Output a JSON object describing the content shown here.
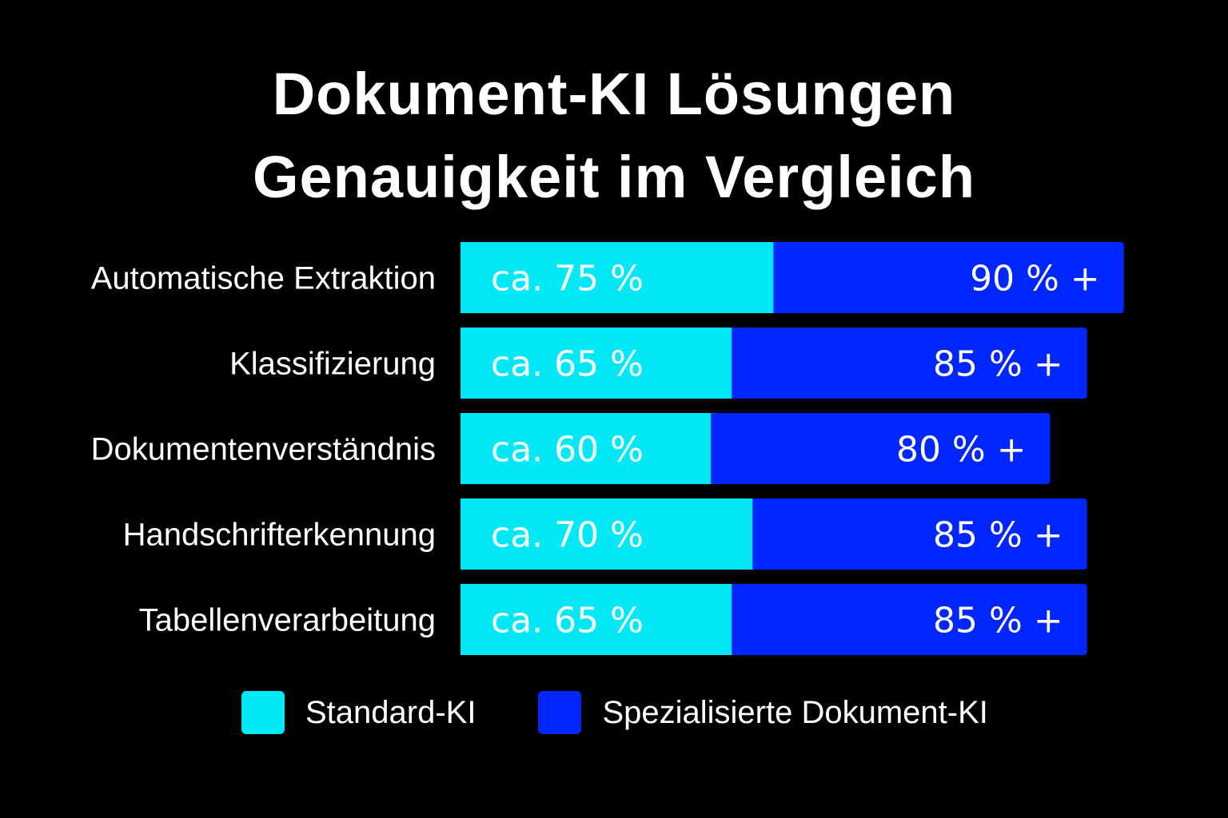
{
  "chart_data": {
    "type": "bar",
    "orientation": "horizontal",
    "stacked": true,
    "title": [
      "Dokument-KI Lösungen",
      "Genauigkeit im Vergleich"
    ],
    "categories": [
      "Automatische Extraktion",
      "Klassifizierung",
      "Dokumentenverständnis",
      "Handschrifterkennung",
      "Tabellenverarbeitung"
    ],
    "series": [
      {
        "name": "Standard-KI",
        "color": "#00E8F5",
        "values": [
          75,
          65,
          60,
          70,
          65
        ],
        "labels": [
          "ca. 75 %",
          "ca. 65 %",
          "ca. 60 %",
          "ca. 70 %",
          "ca. 65 %"
        ]
      },
      {
        "name": "Spezialisierte Dokument-KI",
        "color": "#0026FF",
        "values": [
          90,
          85,
          80,
          85,
          85
        ],
        "labels": [
          "90 % +",
          "85 % +",
          "80 % +",
          "85 % +",
          "85 % +"
        ]
      }
    ],
    "legend_position": "bottom",
    "grid": false
  }
}
